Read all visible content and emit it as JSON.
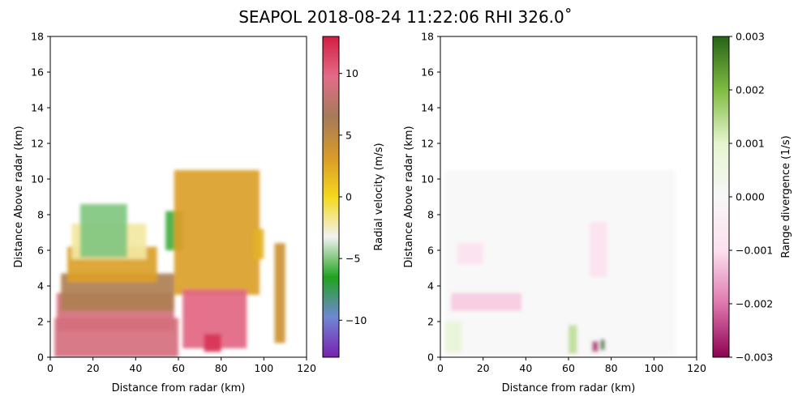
{
  "figure": {
    "title": "SEAPOL 2018-08-24 11:22:06 RHI 326.0˚"
  },
  "chart_data": [
    {
      "type": "heatmap",
      "xlabel": "Distance from radar (km)",
      "ylabel": "Distance Above radar  (km)",
      "xlim": [
        0,
        120
      ],
      "ylim": [
        0,
        18
      ],
      "xticks": [
        "0",
        "20",
        "40",
        "60",
        "80",
        "100",
        "120"
      ],
      "yticks": [
        "0",
        "2",
        "4",
        "6",
        "8",
        "10",
        "12",
        "14",
        "16",
        "18"
      ],
      "grid": false,
      "colorbar": {
        "label": "Radial velocity (m/s)",
        "range": [
          -13,
          13
        ],
        "ticks": [
          "−10",
          "−5",
          "0",
          "5",
          "10"
        ],
        "tick_values": [
          -10,
          -5,
          0,
          5,
          10
        ],
        "colors": [
          "#7a1fb0",
          "#6f87d4",
          "#21a31f",
          "#f2f2f2",
          "#f5d81c",
          "#d99a2a",
          "#a57a5a",
          "#e36c88",
          "#d21e42"
        ]
      },
      "regions": [
        {
          "x": [
            2,
            60
          ],
          "y": [
            0,
            2.2
          ],
          "value": 9
        },
        {
          "x": [
            3,
            58
          ],
          "y": [
            1.5,
            3.6
          ],
          "value": 9
        },
        {
          "x": [
            5,
            58
          ],
          "y": [
            2.6,
            4.7
          ],
          "value": 6
        },
        {
          "x": [
            8,
            50
          ],
          "y": [
            4.2,
            6.2
          ],
          "value": 3
        },
        {
          "x": [
            10,
            45
          ],
          "y": [
            5.5,
            7.5
          ],
          "value": -2
        },
        {
          "x": [
            14,
            36
          ],
          "y": [
            5.6,
            8.6
          ],
          "value": -5
        },
        {
          "x": [
            54,
            62
          ],
          "y": [
            6,
            8.2
          ],
          "value": -6
        },
        {
          "x": [
            58,
            98
          ],
          "y": [
            3.5,
            10.5
          ],
          "value": 3
        },
        {
          "x": [
            62,
            92
          ],
          "y": [
            0.5,
            3.8
          ],
          "value": 10
        },
        {
          "x": [
            72,
            80
          ],
          "y": [
            0.3,
            1.3
          ],
          "value": 12
        },
        {
          "x": [
            95,
            100
          ],
          "y": [
            5.5,
            7.2
          ],
          "value": 2
        },
        {
          "x": [
            105,
            110
          ],
          "y": [
            0.8,
            6.4
          ],
          "value": 4
        }
      ]
    },
    {
      "type": "heatmap",
      "xlabel": "Distance from radar (km)",
      "ylabel": "Distance Above radar  (km)",
      "xlim": [
        0,
        120
      ],
      "ylim": [
        0,
        18
      ],
      "xticks": [
        "0",
        "20",
        "40",
        "60",
        "80",
        "100",
        "120"
      ],
      "yticks": [
        "0",
        "2",
        "4",
        "6",
        "8",
        "10",
        "12",
        "14",
        "16",
        "18"
      ],
      "grid": false,
      "colorbar": {
        "label": "Range divergence (1/s)",
        "range": [
          -0.003,
          0.003
        ],
        "ticks": [
          "−0.003",
          "−0.002",
          "−0.001",
          "0.000",
          "0.001",
          "0.002",
          "0.003"
        ],
        "tick_values": [
          -0.003,
          -0.002,
          -0.001,
          0,
          0.001,
          0.002,
          0.003
        ],
        "colors": [
          "#8e0152",
          "#de77ae",
          "#fde0ef",
          "#f7f7f7",
          "#e6f5d0",
          "#7fbc41",
          "#276419"
        ]
      },
      "regions": [
        {
          "x": [
            2,
            110
          ],
          "y": [
            0,
            10.5
          ],
          "value": 0
        },
        {
          "x": [
            5,
            38
          ],
          "y": [
            2.6,
            3.6
          ],
          "value": -0.0012
        },
        {
          "x": [
            8,
            20
          ],
          "y": [
            5.2,
            6.4
          ],
          "value": -0.0009
        },
        {
          "x": [
            70,
            78
          ],
          "y": [
            4.5,
            7.6
          ],
          "value": -0.0009
        },
        {
          "x": [
            2,
            10
          ],
          "y": [
            0.3,
            2.0
          ],
          "value": 0.0008
        },
        {
          "x": [
            60,
            64
          ],
          "y": [
            0.2,
            1.8
          ],
          "value": 0.0014
        },
        {
          "x": [
            71,
            74
          ],
          "y": [
            0.3,
            0.9
          ],
          "value": -0.0025
        },
        {
          "x": [
            75,
            77
          ],
          "y": [
            0.4,
            1.0
          ],
          "value": 0.0028
        }
      ]
    }
  ]
}
